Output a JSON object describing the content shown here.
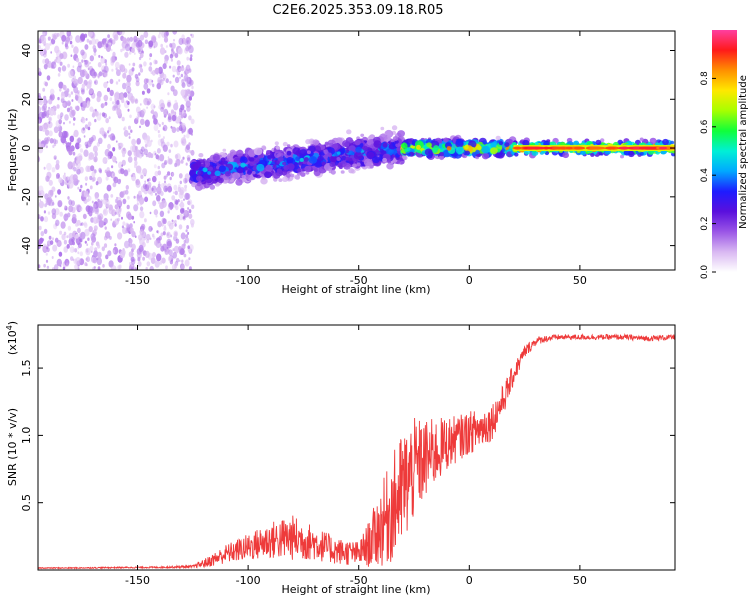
{
  "title": "C2E6.2025.353.09.18.R05",
  "colors": {
    "snr_line": "#ee3a3a",
    "frame": "#000000",
    "colormap": [
      "#ffffff",
      "#d9b8f2",
      "#9a55e6",
      "#5a10dd",
      "#1e1cff",
      "#00a9ff",
      "#00f0d6",
      "#10ff3a",
      "#a8ff00",
      "#ffe800",
      "#ff9000",
      "#ff1a1a",
      "#ff3fa0"
    ]
  },
  "chart_data": [
    {
      "type": "heatmap",
      "title": "C2E6.2025.353.09.18.R05",
      "xlabel": "Height of straight line (km)",
      "ylabel": "Frequency (Hz)",
      "xlim": [
        -195,
        93
      ],
      "ylim": [
        -50,
        48
      ],
      "x_ticks": [
        -150,
        -100,
        -50,
        0,
        50
      ],
      "x_tick_labels": [
        "-150",
        "-100",
        "-50",
        "0",
        "50"
      ],
      "y_ticks": [
        -40,
        -20,
        0,
        20,
        40
      ],
      "y_tick_labels": [
        "-40",
        "-20",
        "0",
        "20",
        "40"
      ],
      "colorbar": {
        "label": "Normalized spectral amplitude",
        "range": [
          0,
          1
        ],
        "ticks": [
          0.0,
          0.2,
          0.4,
          0.6,
          0.8
        ],
        "tick_labels": [
          "0.0",
          "0.2",
          "0.4",
          "0.6",
          "0.8"
        ]
      },
      "regions": [
        {
          "description_x": [
            -195,
            -125
          ],
          "freq_range": [
            -50,
            48
          ],
          "amplitude": [
            0.05,
            0.15
          ],
          "pattern": "scattered noise"
        },
        {
          "description_x": [
            -125,
            -30
          ],
          "center_freq": [
            -10,
            0
          ],
          "spread_hz": 6,
          "amplitude": [
            0.2,
            0.5
          ],
          "pattern": "noisy band rising toward 0 Hz"
        },
        {
          "description_x": [
            -30,
            20
          ],
          "center_freq": [
            0,
            0
          ],
          "spread_hz": 3,
          "amplitude": [
            0.4,
            0.9
          ],
          "pattern": "narrowing band"
        },
        {
          "description_x": [
            20,
            93
          ],
          "center_freq": [
            0,
            0
          ],
          "spread_hz": 2.5,
          "amplitude": [
            0.6,
            0.95
          ],
          "pattern": "steady narrow line"
        }
      ]
    },
    {
      "type": "line",
      "xlabel": "Height of straight line (km)",
      "ylabel": "SNR (10 * v/v)",
      "y_multiplier": "(x10^4)",
      "y_multiplier_base": "(x10",
      "y_multiplier_exp": "4",
      "y_multiplier_close": ")",
      "xlim": [
        -195,
        93
      ],
      "ylim": [
        0,
        1.82
      ],
      "x_ticks": [
        -150,
        -100,
        -50,
        0,
        50
      ],
      "x_tick_labels": [
        "-150",
        "-100",
        "-50",
        "0",
        "50"
      ],
      "y_ticks": [
        0.5,
        1.0,
        1.5
      ],
      "y_tick_labels": [
        "0.5",
        "1.0",
        "1.5"
      ],
      "series": [
        {
          "x": [
            -195,
            -180,
            -160,
            -140,
            -125,
            -118,
            -110,
            -100,
            -90,
            -80,
            -70,
            -60,
            -50,
            -45,
            -40,
            -35,
            -30,
            -25,
            -20,
            -15,
            -10,
            -5,
            0,
            5,
            10,
            15,
            20,
            25,
            30,
            35,
            40,
            50,
            60,
            70,
            80,
            93
          ],
          "values": [
            0.015,
            0.015,
            0.018,
            0.02,
            0.025,
            0.06,
            0.12,
            0.17,
            0.22,
            0.24,
            0.2,
            0.14,
            0.12,
            0.2,
            0.32,
            0.45,
            0.6,
            0.75,
            0.82,
            0.88,
            0.94,
            0.98,
            1.02,
            1.05,
            1.1,
            1.25,
            1.45,
            1.62,
            1.7,
            1.72,
            1.73,
            1.73,
            1.73,
            1.73,
            1.72,
            1.73
          ],
          "noise": [
            0.004,
            0.004,
            0.005,
            0.006,
            0.01,
            0.04,
            0.07,
            0.1,
            0.14,
            0.17,
            0.13,
            0.1,
            0.09,
            0.18,
            0.3,
            0.4,
            0.45,
            0.38,
            0.3,
            0.25,
            0.2,
            0.17,
            0.16,
            0.15,
            0.14,
            0.12,
            0.08,
            0.05,
            0.03,
            0.025,
            0.02,
            0.02,
            0.02,
            0.02,
            0.02,
            0.02
          ]
        }
      ]
    }
  ]
}
